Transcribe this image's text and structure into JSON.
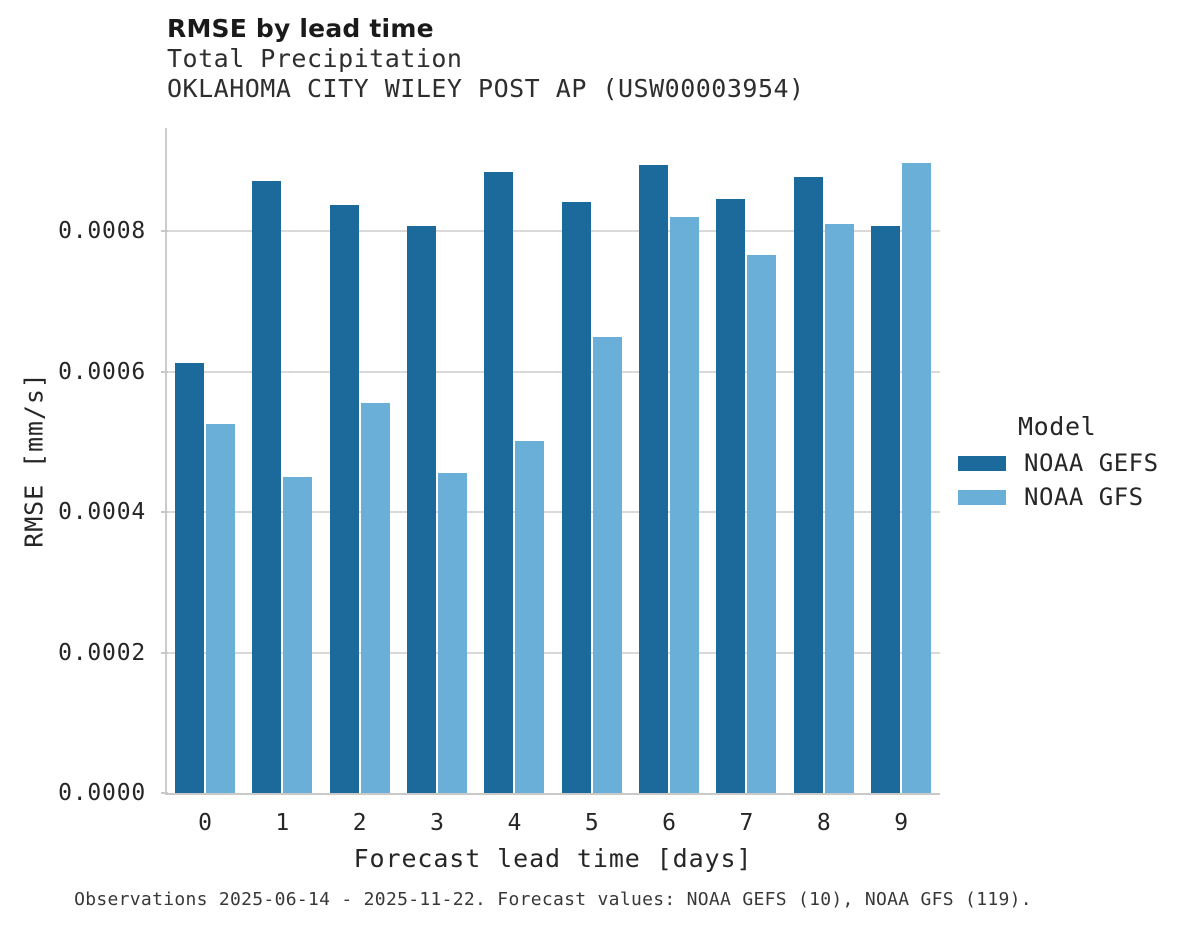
{
  "header": {
    "title": "RMSE by lead time",
    "subtitle": "Total Precipitation",
    "station": "OKLAHOMA CITY WILEY POST AP (USW00003954)"
  },
  "footer": {
    "caption": "Observations 2025-06-14 - 2025-11-22. Forecast values: NOAA GEFS (10), NOAA GFS (119)."
  },
  "legend": {
    "title": "Model",
    "items": [
      {
        "label": "NOAA GEFS",
        "color": "#1c6a9b"
      },
      {
        "label": "NOAA GFS",
        "color": "#69afd7"
      }
    ]
  },
  "colors": {
    "gefs_bar": "#1c6a9b",
    "gfs_bar": "#69afd7",
    "gridline": "#d9d9d9",
    "spine": "#c9c9c9",
    "text": "#262626"
  },
  "chart_data": {
    "type": "bar",
    "title": "RMSE by lead time",
    "subtitle": "Total Precipitation",
    "station": "OKLAHOMA CITY WILEY POST AP (USW00003954)",
    "xlabel": "Forecast lead time [days]",
    "ylabel": "RMSE [mm/s]",
    "categories": [
      "0",
      "1",
      "2",
      "3",
      "4",
      "5",
      "6",
      "7",
      "8",
      "9"
    ],
    "series": [
      {
        "name": "NOAA GEFS",
        "color": "#1c6a9b",
        "values": [
          0.000613,
          0.000871,
          0.000837,
          0.000807,
          0.000884,
          0.000841,
          0.000895,
          0.000846,
          0.000877,
          0.000807
        ]
      },
      {
        "name": "NOAA GFS",
        "color": "#69afd7",
        "values": [
          0.000525,
          0.00045,
          0.000555,
          0.000456,
          0.000501,
          0.00065,
          0.000821,
          0.000766,
          0.000811,
          0.000897
        ]
      }
    ],
    "ylim": [
      0,
      0.000947
    ],
    "yticks": [
      0.0,
      0.0002,
      0.0004,
      0.0006,
      0.0008
    ],
    "ytick_labels": [
      "0.0000",
      "0.0002",
      "0.0004",
      "0.0006",
      "0.0008"
    ],
    "grid": "horizontal",
    "legend_position": "right",
    "legend_title": "Model"
  }
}
